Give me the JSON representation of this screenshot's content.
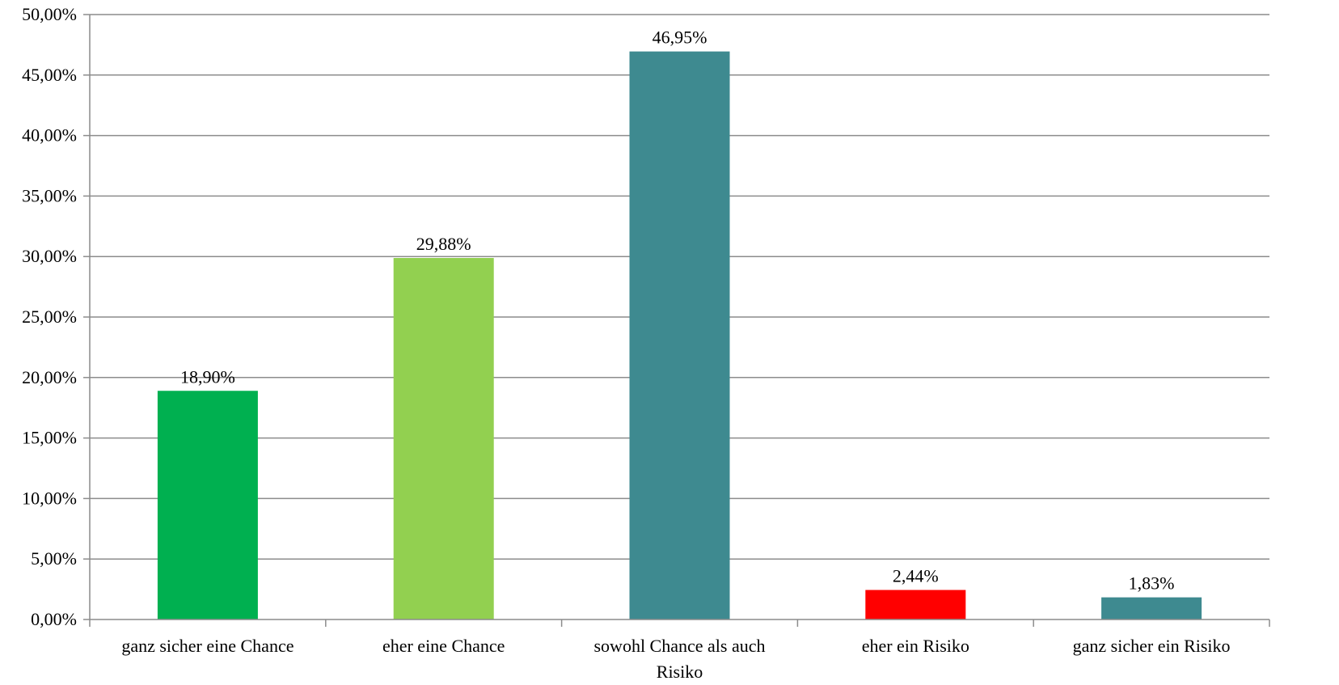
{
  "chart_data": {
    "type": "bar",
    "categories": [
      "ganz sicher eine Chance",
      "eher eine Chance",
      "sowohl Chance als auch Risiko",
      "eher ein Risiko",
      "ganz sicher ein Risiko"
    ],
    "category_lines": [
      [
        "ganz sicher eine Chance"
      ],
      [
        "eher eine Chance"
      ],
      [
        "sowohl Chance als auch",
        "Risiko"
      ],
      [
        "eher ein Risiko"
      ],
      [
        "ganz sicher ein Risiko"
      ]
    ],
    "values": [
      18.9,
      29.88,
      46.95,
      2.44,
      1.83
    ],
    "data_labels": [
      "18,90%",
      "29,88%",
      "46,95%",
      "2,44%",
      "1,83%"
    ],
    "bar_colors": [
      "#00b050",
      "#92d050",
      "#3e8a90",
      "#ff0000",
      "#3e8a90"
    ],
    "ylim": [
      0,
      50
    ],
    "ytick_values": [
      0,
      5,
      10,
      15,
      20,
      25,
      30,
      35,
      40,
      45,
      50
    ],
    "ytick_labels": [
      "0,00%",
      "5,00%",
      "10,00%",
      "15,00%",
      "20,00%",
      "25,00%",
      "30,00%",
      "35,00%",
      "40,00%",
      "45,00%",
      "50,00%"
    ],
    "grid": true,
    "legend": "none",
    "title": "",
    "xlabel": "",
    "ylabel": ""
  }
}
